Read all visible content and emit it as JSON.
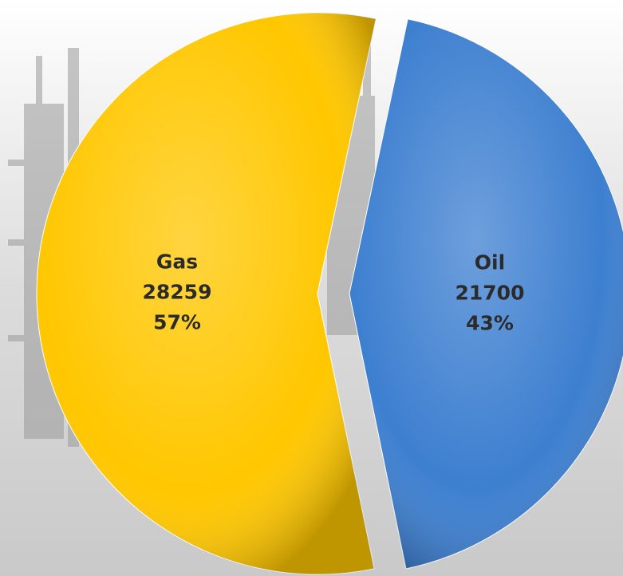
{
  "chart_data": {
    "type": "pie",
    "categories": [
      "Oil",
      "Gas"
    ],
    "values": [
      21700,
      28259
    ],
    "percent_labels": [
      "43%",
      "57%"
    ],
    "colors": [
      "#3d7fd0",
      "#ffc700"
    ]
  }
}
